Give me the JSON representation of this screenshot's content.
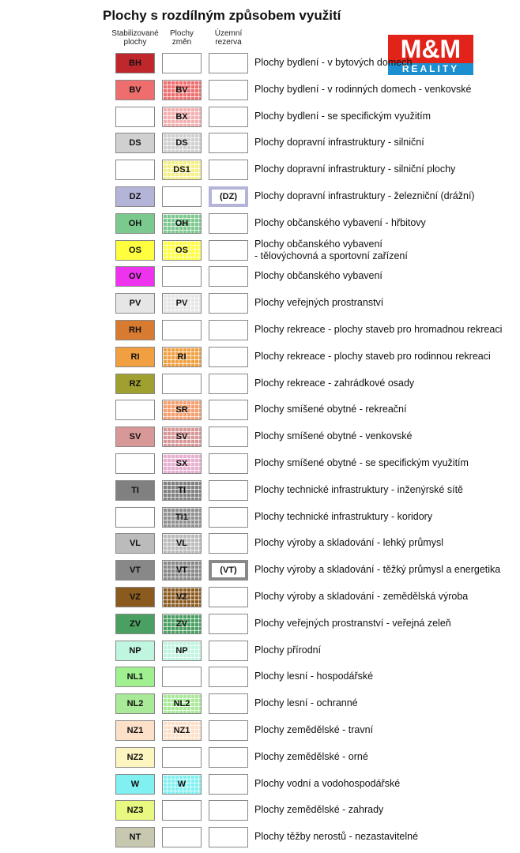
{
  "title": "Plochy s rozdílným způsobem využití",
  "logo": {
    "mark": "M&M",
    "sub": "REALITY"
  },
  "columns": [
    [
      "Stabilizované",
      "plochy"
    ],
    [
      "Plochy",
      "změn"
    ],
    [
      "Územní",
      "rezerva"
    ]
  ],
  "rows": [
    {
      "stable": "BH",
      "color": "#c0272d",
      "label": "Plochy bydlení - v bytových domech"
    },
    {
      "stable": "BV",
      "change": "BV",
      "color": "#ee6e6e",
      "label": "Plochy bydlení - v rodinných domech - venkovské"
    },
    {
      "change": "BX",
      "color": "#f4b0b0",
      "label": "Plochy bydlení - se specifickým využitím"
    },
    {
      "stable": "DS",
      "change": "DS",
      "color": "#d0d0d0",
      "label": "Plochy dopravní infrastruktury - silniční"
    },
    {
      "change": "DS1",
      "color": "#f5f08a",
      "label": "Plochy dopravní infrastruktury - silniční plochy"
    },
    {
      "stable": "DZ",
      "reserve": "(DZ)",
      "color": "#b4b4d8",
      "label": "Plochy dopravní infrastruktury - železniční (drážní)"
    },
    {
      "stable": "OH",
      "change": "OH",
      "color": "#7cc98f",
      "label": "Plochy občanského vybavení - hřbitovy"
    },
    {
      "stable": "OS",
      "change": "OS",
      "color": "#ffff40",
      "label": [
        "Plochy občanského vybavení",
        "- tělovýchovná a sportovní zařízení"
      ]
    },
    {
      "stable": "OV",
      "color": "#ee33ee",
      "label": "Plochy občanského vybavení"
    },
    {
      "stable": "PV",
      "change": "PV",
      "color": "#e6e6e6",
      "label": "Plochy veřejných prostranství"
    },
    {
      "stable": "RH",
      "color": "#d87a30",
      "label": "Plochy rekreace - plochy staveb pro hromadnou rekreaci"
    },
    {
      "stable": "RI",
      "change": "RI",
      "color": "#f0a040",
      "label": "Plochy rekreace - plochy staveb pro rodinnou rekreaci"
    },
    {
      "stable": "RZ",
      "color": "#a0a030",
      "label": "Plochy rekreace - zahrádkové osady"
    },
    {
      "change": "SR",
      "color": "#f4a070",
      "label": "Plochy smíšené obytné - rekreační"
    },
    {
      "stable": "SV",
      "change": "SV",
      "color": "#d89898",
      "label": "Plochy smíšené obytné - venkovské"
    },
    {
      "change": "SX",
      "color": "#e8b0d0",
      "label": "Plochy smíšené obytné - se specifickým využitím"
    },
    {
      "stable": "TI",
      "change": "TI",
      "color": "#808080",
      "label": "Plochy technické infrastruktury - inženýrské sítě"
    },
    {
      "change": "TI1",
      "color": "#909090",
      "label": "Plochy technické infrastruktury - koridory"
    },
    {
      "stable": "VL",
      "change": "VL",
      "color": "#bbbbbb",
      "label": "Plochy výroby a skladování - lehký průmysl"
    },
    {
      "stable": "VT",
      "change": "VT",
      "reserve": "(VT)",
      "color": "#888888",
      "label": "Plochy výroby a skladování - těžký průmysl a energetika"
    },
    {
      "stable": "VZ",
      "change": "VZ",
      "color": "#8b5a1e",
      "label": "Plochy výroby a skladování - zemědělská výroba"
    },
    {
      "stable": "ZV",
      "change": "ZV",
      "color": "#4aa060",
      "label": "Plochy veřejných prostranství - veřejná zeleň"
    },
    {
      "stable": "NP",
      "change": "NP",
      "color": "#c0f5e0",
      "label": "Plochy přírodní"
    },
    {
      "stable": "NL1",
      "color": "#a0f090",
      "label": "Plochy lesní - hospodářské"
    },
    {
      "stable": "NL2",
      "change": "NL2",
      "color": "#a8ea98",
      "label": "Plochy lesní - ochranné"
    },
    {
      "stable": "NZ1",
      "change": "NZ1",
      "color": "#fde0c8",
      "label": "Plochy zemědělské - travní"
    },
    {
      "stable": "NZ2",
      "color": "#fdf5c0",
      "label": "Plochy zemědělské - orné"
    },
    {
      "stable": "W",
      "change": "W",
      "color": "#80f0f0",
      "label": "Plochy vodní a vodohospodářské"
    },
    {
      "stable": "NZ3",
      "color": "#e8f880",
      "label": "Plochy zemědělské - zahrady"
    },
    {
      "stable": "NT",
      "color": "#c8c8b0",
      "label": "Plochy těžby nerostů - nezastavitelné"
    }
  ]
}
